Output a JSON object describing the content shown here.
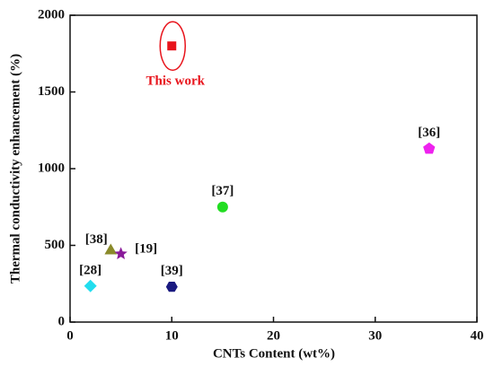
{
  "chart_data": {
    "type": "scatter",
    "x_label": "CNTs Content (wt%)",
    "y_label": "Thermal conductivity enhancement (%)",
    "xlim": [
      0,
      40
    ],
    "xticks": [
      0,
      10,
      20,
      30,
      40
    ],
    "ylim": [
      0,
      2000
    ],
    "yticks": [
      0,
      500,
      1000,
      1500,
      2000
    ],
    "series": [
      {
        "name": "This work",
        "color": "#e8141c",
        "marker": "square",
        "x": [
          10
        ],
        "values": [
          1800
        ]
      },
      {
        "name": "[36]",
        "color": "#ee22ee",
        "marker": "pentagon",
        "x": [
          35.3
        ],
        "values": [
          1130
        ]
      },
      {
        "name": "[37]",
        "color": "#22dd22",
        "marker": "circle",
        "x": [
          15
        ],
        "values": [
          750
        ]
      },
      {
        "name": "[38]",
        "color": "#8a8a2a",
        "marker": "triangle",
        "x": [
          4
        ],
        "values": [
          465
        ]
      },
      {
        "name": "[19]",
        "color": "#8a1a9a",
        "marker": "star",
        "x": [
          5
        ],
        "values": [
          445
        ]
      },
      {
        "name": "[28]",
        "color": "#22ddee",
        "marker": "diamond",
        "x": [
          2
        ],
        "values": [
          235
        ]
      },
      {
        "name": "[39]",
        "color": "#1a1a80",
        "marker": "hexagon",
        "x": [
          10
        ],
        "values": [
          230
        ]
      }
    ]
  }
}
